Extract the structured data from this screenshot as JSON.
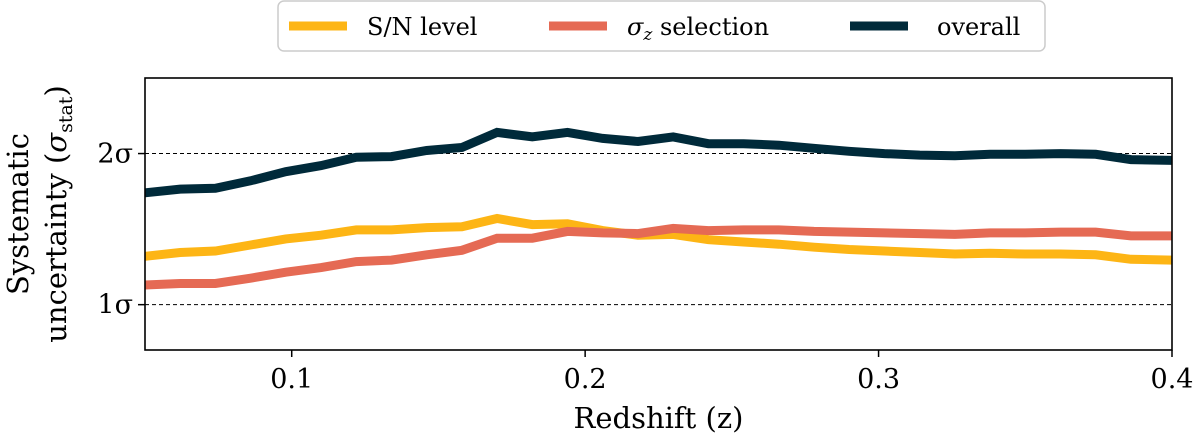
{
  "chart_data": {
    "type": "line",
    "xlabel": "Redshift (z)",
    "ylabel": "Systematic uncertainty (σ_stat)",
    "ylabel_line1": "Systematic",
    "ylabel_line2_main": "uncertainty (",
    "ylabel_sigma": "σ",
    "ylabel_sub": "stat",
    "ylabel_close": ")",
    "xlim": [
      0.05,
      0.4
    ],
    "ylim": [
      0.7,
      2.5
    ],
    "xticks": [
      {
        "value": 0.1,
        "label": "0.1"
      },
      {
        "value": 0.2,
        "label": "0.2"
      },
      {
        "value": 0.3,
        "label": "0.3"
      },
      {
        "value": 0.4,
        "label": "0.4"
      }
    ],
    "yticks": [
      {
        "value": 1,
        "label": "1σ"
      },
      {
        "value": 2,
        "label": "2σ"
      }
    ],
    "reference_lines": [
      1,
      2
    ],
    "grid": false,
    "legend_position": "top-center-outside",
    "x": [
      0.05,
      0.062,
      0.074,
      0.086,
      0.098,
      0.11,
      0.122,
      0.134,
      0.146,
      0.158,
      0.17,
      0.182,
      0.194,
      0.206,
      0.218,
      0.23,
      0.242,
      0.254,
      0.266,
      0.278,
      0.29,
      0.302,
      0.314,
      0.326,
      0.338,
      0.35,
      0.362,
      0.374,
      0.386,
      0.4
    ],
    "series": [
      {
        "name": "S/N level",
        "color": "#fdb515",
        "values": [
          1.32,
          1.345,
          1.355,
          1.395,
          1.435,
          1.46,
          1.495,
          1.495,
          1.51,
          1.515,
          1.57,
          1.53,
          1.535,
          1.49,
          1.46,
          1.465,
          1.43,
          1.415,
          1.4,
          1.38,
          1.365,
          1.355,
          1.345,
          1.335,
          1.34,
          1.335,
          1.335,
          1.33,
          1.3,
          1.295
        ]
      },
      {
        "name": "σz selection",
        "name_sigma": "σ",
        "name_sub": "z",
        "name_rest": " selection",
        "color": "#e56a54",
        "values": [
          1.13,
          1.14,
          1.14,
          1.175,
          1.215,
          1.245,
          1.285,
          1.295,
          1.33,
          1.36,
          1.44,
          1.44,
          1.485,
          1.475,
          1.47,
          1.505,
          1.49,
          1.495,
          1.495,
          1.485,
          1.48,
          1.475,
          1.47,
          1.465,
          1.475,
          1.475,
          1.48,
          1.48,
          1.455,
          1.455
        ]
      },
      {
        "name": "overall",
        "color": "#002a3a",
        "values": [
          1.74,
          1.765,
          1.77,
          1.82,
          1.88,
          1.92,
          1.975,
          1.98,
          2.02,
          2.04,
          2.14,
          2.11,
          2.14,
          2.1,
          2.08,
          2.11,
          2.065,
          2.065,
          2.055,
          2.035,
          2.015,
          2.0,
          1.99,
          1.985,
          1.995,
          1.995,
          2.0,
          1.995,
          1.96,
          1.955
        ]
      }
    ]
  }
}
